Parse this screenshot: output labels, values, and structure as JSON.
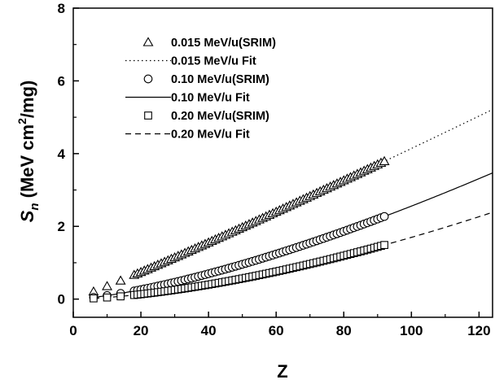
{
  "chart_data": {
    "type": "scatter",
    "xlabel": "Z",
    "ylabel_main": "S",
    "ylabel_sub": "n",
    "ylabel_unit_pre": " (MeV cm",
    "ylabel_unit_sup": "2",
    "ylabel_unit_post": "/mg)",
    "xlim": [
      0,
      124
    ],
    "ylim": [
      -0.5,
      8
    ],
    "xticks": [
      0,
      20,
      40,
      60,
      80,
      100,
      120
    ],
    "yticks": [
      0,
      2,
      4,
      6,
      8
    ],
    "grid": false,
    "legend_position": "top-left",
    "series": [
      {
        "name": "0.015 MeV/u(SRIM)",
        "kind": "markers",
        "marker": "triangle",
        "a": 0.03,
        "b": 1.07,
        "zmin": 6,
        "zmax": 92
      },
      {
        "name": "0.015 MeV/u Fit",
        "kind": "line",
        "dash": "dotted",
        "a": 0.03,
        "b": 1.07,
        "zmin": 18,
        "zmax": 124
      },
      {
        "name": "0.10 MeV/u(SRIM)",
        "kind": "markers",
        "marker": "circle",
        "a": 0.00372,
        "b": 1.4186,
        "zmin": 6,
        "zmax": 92
      },
      {
        "name": "0.10 MeV/u Fit",
        "kind": "line",
        "dash": "solid",
        "a": 0.00372,
        "b": 1.4186,
        "zmin": 6,
        "zmax": 124
      },
      {
        "name": "0.20 MeV/u(SRIM)",
        "kind": "markers",
        "marker": "square",
        "a": 0.00116,
        "b": 1.5827,
        "zmin": 6,
        "zmax": 92
      },
      {
        "name": "0.20 MeV/u Fit",
        "kind": "line",
        "dash": "dashed",
        "a": 0.00116,
        "b": 1.5827,
        "zmin": 6,
        "zmax": 124
      }
    ]
  }
}
